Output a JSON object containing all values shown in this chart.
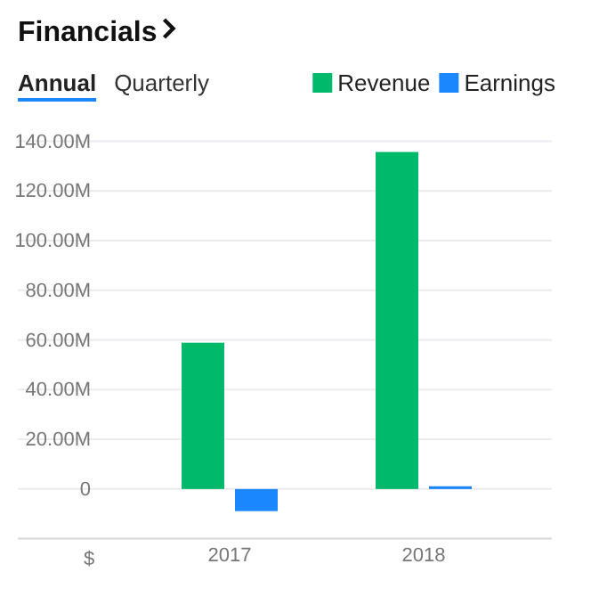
{
  "chart_data": {
    "type": "bar",
    "title": "Financials",
    "annotations": [
      "Annual",
      "Quarterly",
      "$"
    ],
    "categories": [
      "2017",
      "2018"
    ],
    "series": [
      {
        "name": "Revenue",
        "color": "#00b96b",
        "values": [
          58.9,
          135.7
        ]
      },
      {
        "name": "Earnings",
        "color": "#1a87ff",
        "values": [
          -8.9,
          1.1
        ]
      }
    ],
    "ylim": [
      -20,
      140
    ],
    "yticks": [
      {
        "value": -20,
        "label": null
      },
      {
        "value": 0,
        "label": "0"
      },
      {
        "value": 20,
        "label": "20.00M"
      },
      {
        "value": 40,
        "label": "40.00M"
      },
      {
        "value": 60,
        "label": "60.00M"
      },
      {
        "value": 80,
        "label": "80.00M"
      },
      {
        "value": 100,
        "label": "100.00M"
      },
      {
        "value": 120,
        "label": "120.00M"
      },
      {
        "value": 140,
        "label": "140.00M"
      }
    ],
    "grid": "y",
    "legend": "top right"
  }
}
